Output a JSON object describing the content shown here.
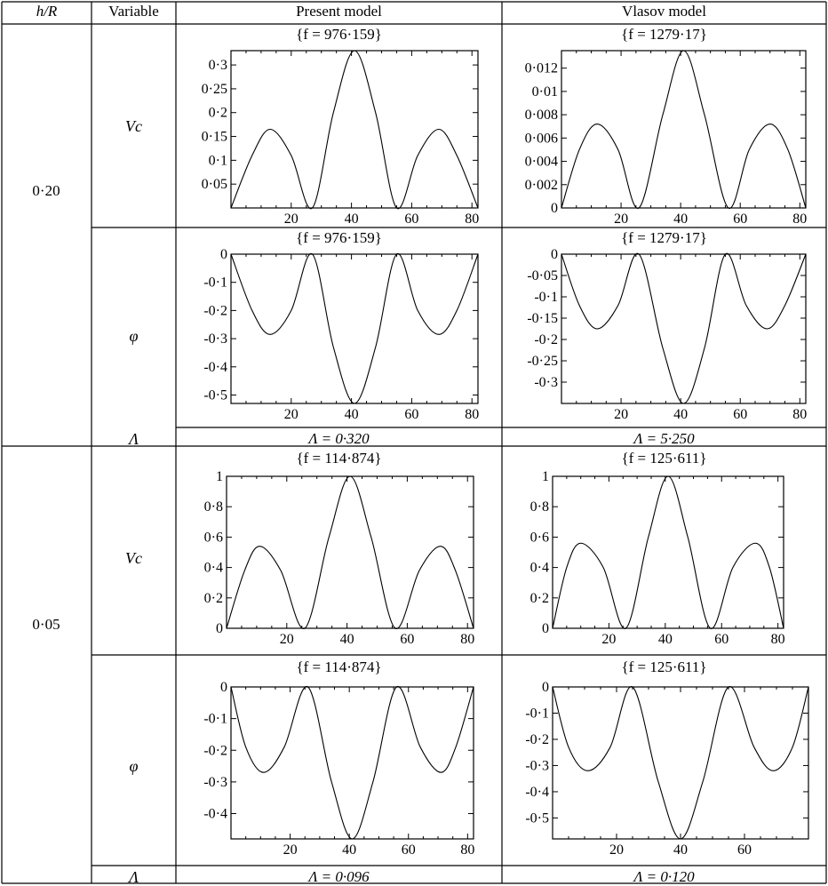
{
  "table": {
    "headers": {
      "hr": "h/R",
      "variable": "Variable",
      "present": "Present model",
      "vlasov": "Vlasov model"
    },
    "groups": [
      {
        "hr": "0·20",
        "rows": [
          {
            "variable": "Vc",
            "present_title": "{f = 976·159}",
            "vlasov_title": "{f = 1279·17}"
          },
          {
            "variable": "φ",
            "present_title": "{f = 976·159}",
            "vlasov_title": "{f = 1279·17}"
          }
        ],
        "lambda_label": "Λ",
        "present_lambda": "Λ = 0·320",
        "vlasov_lambda": "Λ = 5·250"
      },
      {
        "hr": "0·05",
        "rows": [
          {
            "variable": "Vc",
            "present_title": "{f = 114·874}",
            "vlasov_title": "{f = 125·611}"
          },
          {
            "variable": "φ",
            "present_title": "{f = 114·874}",
            "vlasov_title": "{f = 125·611}"
          }
        ],
        "lambda_label": "Λ",
        "present_lambda": "Λ = 0·096",
        "vlasov_lambda": "Λ = 0·120"
      }
    ]
  },
  "chart_data": [
    {
      "id": "p1",
      "type": "line",
      "title": "{f = 976·159}",
      "xlim": [
        0,
        82
      ],
      "ylim": [
        0,
        0.33
      ],
      "xticks": [
        20,
        40,
        60,
        80
      ],
      "xtick_labels": [
        "20",
        "40",
        "60",
        "80"
      ],
      "yticks": [
        0.05,
        0.1,
        0.15,
        0.2,
        0.25,
        0.3
      ],
      "ytick_labels": [
        "0·05",
        "0·1",
        "0·15",
        "0·2",
        "0·25",
        "0·3"
      ],
      "x": [
        0,
        7,
        13,
        20,
        27,
        34,
        41,
        48,
        55,
        62,
        69,
        75,
        82
      ],
      "y": [
        0,
        0.11,
        0.165,
        0.11,
        0,
        0.2,
        0.33,
        0.2,
        0,
        0.11,
        0.165,
        0.11,
        0
      ]
    },
    {
      "id": "p2",
      "type": "line",
      "title": "{f = 1279·17}",
      "xlim": [
        0,
        82
      ],
      "ylim": [
        0,
        0.0135
      ],
      "xticks": [
        20,
        40,
        60,
        80
      ],
      "xtick_labels": [
        "20",
        "40",
        "60",
        "80"
      ],
      "yticks": [
        0,
        0.002,
        0.004,
        0.006,
        0.008,
        0.01,
        0.012
      ],
      "ytick_labels": [
        "0",
        "0·002",
        "0·004",
        "0·006",
        "0·008",
        "0·01",
        "0·012"
      ],
      "x": [
        0,
        6,
        12,
        19,
        26,
        34,
        41,
        48,
        56,
        63,
        70,
        76,
        82
      ],
      "y": [
        0,
        0.005,
        0.0072,
        0.005,
        0,
        0.008,
        0.0135,
        0.008,
        0,
        0.005,
        0.0072,
        0.005,
        0
      ]
    },
    {
      "id": "p3",
      "type": "line",
      "title": "{f = 976·159}",
      "xlim": [
        0,
        82
      ],
      "ylim": [
        -0.53,
        0
      ],
      "xticks": [
        20,
        40,
        60,
        80
      ],
      "xtick_labels": [
        "20",
        "40",
        "60",
        "80"
      ],
      "yticks": [
        0,
        -0.1,
        -0.2,
        -0.3,
        -0.4,
        -0.5
      ],
      "ytick_labels": [
        "0",
        "-0·1",
        "-0·2",
        "-0·3",
        "-0·4",
        "-0·5"
      ],
      "x": [
        0,
        7,
        13,
        20,
        27,
        34,
        41,
        48,
        55,
        62,
        69,
        75,
        82
      ],
      "y": [
        0,
        -0.2,
        -0.285,
        -0.2,
        0,
        -0.33,
        -0.53,
        -0.33,
        0,
        -0.2,
        -0.285,
        -0.2,
        0
      ]
    },
    {
      "id": "p4",
      "type": "line",
      "title": "{f = 1279·17}",
      "xlim": [
        0,
        82
      ],
      "ylim": [
        -0.35,
        0
      ],
      "xticks": [
        20,
        40,
        60,
        80
      ],
      "xtick_labels": [
        "20",
        "40",
        "60",
        "80"
      ],
      "yticks": [
        0,
        -0.05,
        -0.1,
        -0.15,
        -0.2,
        -0.25,
        -0.3
      ],
      "ytick_labels": [
        "0",
        "-0·05",
        "-0·1",
        "-0·15",
        "-0·2",
        "-0·25",
        "-0·3"
      ],
      "x": [
        0,
        6,
        12,
        19,
        26,
        34,
        41,
        48,
        55,
        62,
        69,
        75,
        82
      ],
      "y": [
        0,
        -0.12,
        -0.175,
        -0.12,
        0,
        -0.22,
        -0.35,
        -0.22,
        0,
        -0.12,
        -0.175,
        -0.12,
        0
      ]
    },
    {
      "id": "p5",
      "type": "line",
      "title": "{f = 114·874}",
      "xlim": [
        0,
        82
      ],
      "ylim": [
        0,
        1
      ],
      "xticks": [
        20,
        40,
        60,
        80
      ],
      "xtick_labels": [
        "20",
        "40",
        "60",
        "80"
      ],
      "yticks": [
        0,
        0.2,
        0.4,
        0.6,
        0.8,
        1
      ],
      "ytick_labels": [
        "0",
        "0·2",
        "0·4",
        "0·6",
        "0·8",
        "1"
      ],
      "x": [
        0,
        6,
        11,
        18,
        26,
        34,
        41,
        48,
        56,
        64,
        71,
        76,
        82
      ],
      "y": [
        0,
        0.38,
        0.54,
        0.38,
        0,
        0.6,
        1,
        0.6,
        0,
        0.38,
        0.54,
        0.38,
        0
      ]
    },
    {
      "id": "p6",
      "type": "line",
      "title": "{f = 125·611}",
      "xlim": [
        0,
        82
      ],
      "ylim": [
        0,
        1
      ],
      "xticks": [
        20,
        40,
        60,
        80
      ],
      "xtick_labels": [
        "20",
        "40",
        "60",
        "80"
      ],
      "yticks": [
        0,
        0.2,
        0.4,
        0.6,
        0.8,
        1
      ],
      "ytick_labels": [
        "0",
        "0·2",
        "0·4",
        "0·6",
        "0·8",
        "1"
      ],
      "x": [
        0,
        5,
        10,
        18,
        26,
        34,
        41,
        48,
        56,
        64,
        72,
        77,
        82
      ],
      "y": [
        0,
        0.4,
        0.56,
        0.4,
        0,
        0.6,
        1,
        0.6,
        0,
        0.4,
        0.56,
        0.4,
        0
      ]
    },
    {
      "id": "p7",
      "type": "line",
      "title": "{f = 114·874}",
      "xlim": [
        0,
        82
      ],
      "ylim": [
        -0.48,
        0
      ],
      "xticks": [
        20,
        40,
        60,
        80
      ],
      "xtick_labels": [
        "20",
        "40",
        "60",
        "80"
      ],
      "yticks": [
        0,
        -0.1,
        -0.2,
        -0.3,
        -0.4
      ],
      "ytick_labels": [
        "0",
        "-0·1",
        "-0·2",
        "-0·3",
        "-0·4"
      ],
      "x": [
        0,
        5,
        11,
        18,
        26,
        34,
        41,
        48,
        56,
        64,
        71,
        76,
        82
      ],
      "y": [
        0,
        -0.19,
        -0.27,
        -0.19,
        0,
        -0.3,
        -0.48,
        -0.3,
        0,
        -0.19,
        -0.27,
        -0.19,
        0
      ]
    },
    {
      "id": "p8",
      "type": "line",
      "title": "{f = 125·611}",
      "xlim": [
        0,
        80
      ],
      "ylim": [
        -0.58,
        0
      ],
      "xticks": [
        20,
        40,
        60
      ],
      "xtick_labels": [
        "20",
        "40",
        "60"
      ],
      "yticks": [
        0,
        -0.1,
        -0.2,
        -0.3,
        -0.4,
        -0.5
      ],
      "ytick_labels": [
        "0",
        "-0·1",
        "-0·2",
        "-0·3",
        "-0·4",
        "-0·5"
      ],
      "x": [
        0,
        5,
        11,
        18,
        25,
        33,
        40,
        47,
        55,
        63,
        69,
        75,
        80
      ],
      "y": [
        0,
        -0.23,
        -0.32,
        -0.23,
        0,
        -0.36,
        -0.58,
        -0.36,
        0,
        -0.23,
        -0.32,
        -0.23,
        0
      ]
    }
  ]
}
